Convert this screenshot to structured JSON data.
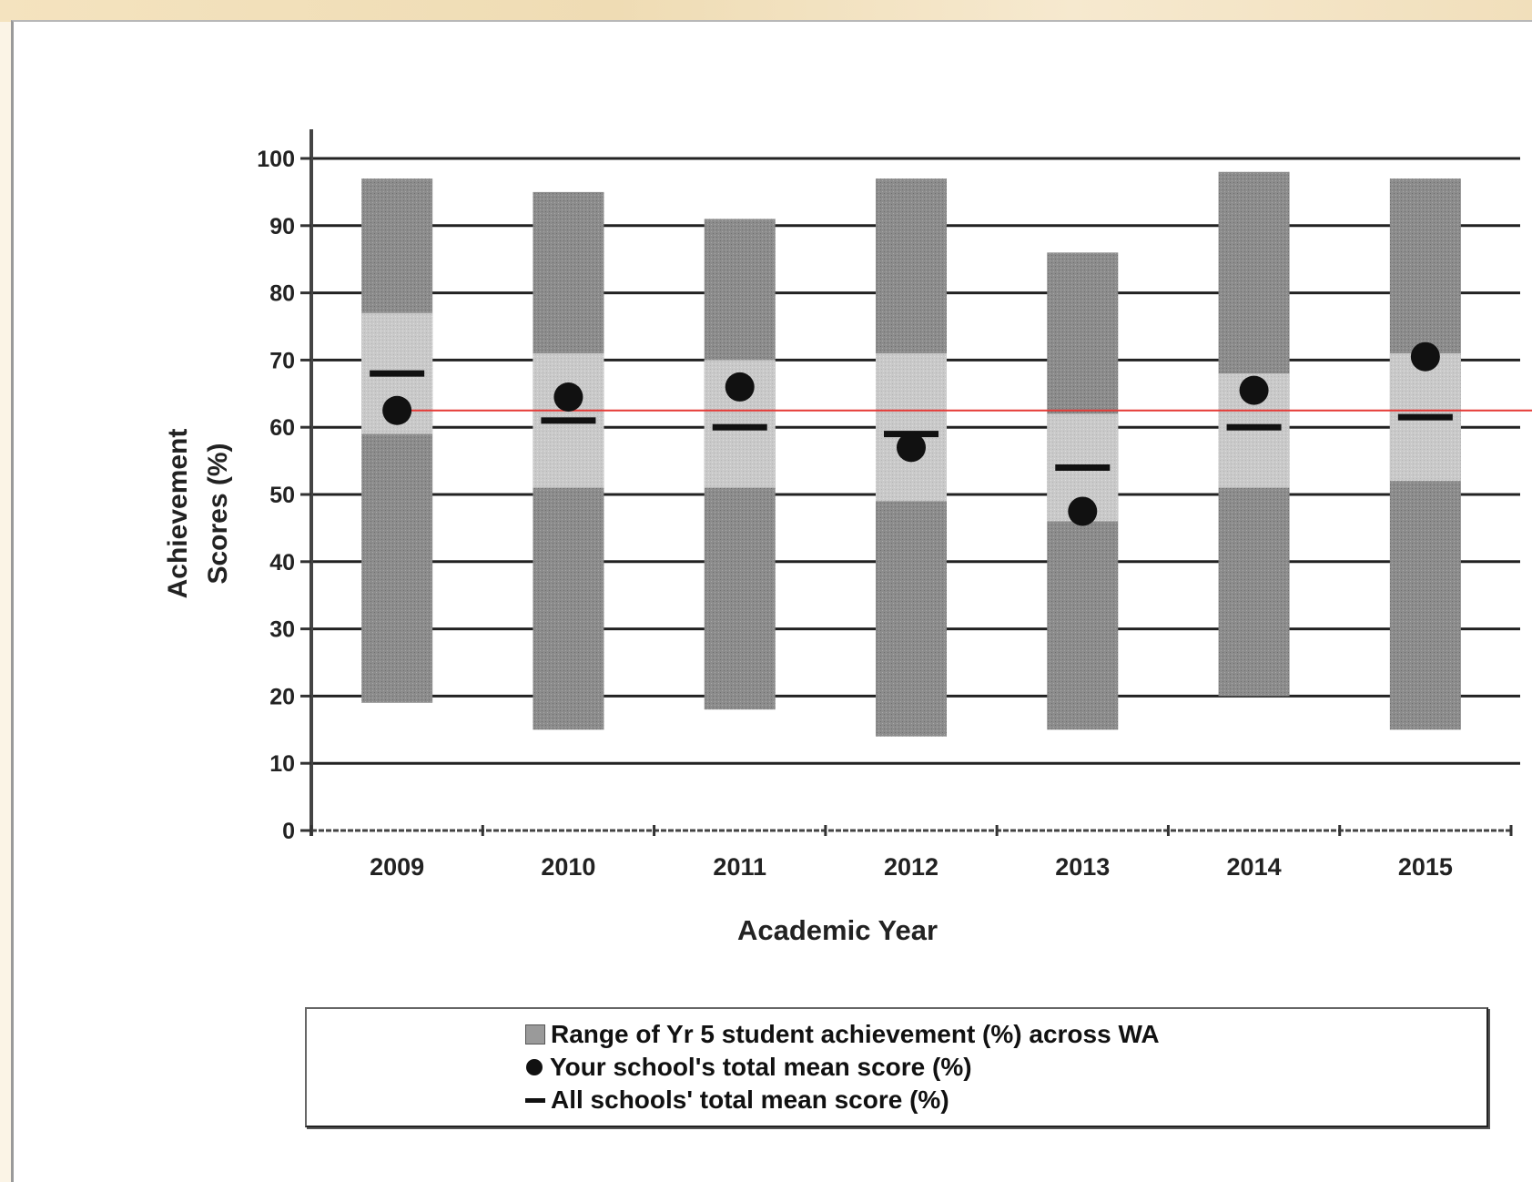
{
  "chart_data": {
    "type": "bar",
    "xlabel": "Academic Year",
    "ylabel": "Achievement Scores (%)",
    "ylabel_lines": [
      "Achievement",
      "Scores (%)"
    ],
    "ylim": [
      0,
      100
    ],
    "yticks": [
      0,
      10,
      20,
      30,
      40,
      50,
      60,
      70,
      80,
      90,
      100
    ],
    "categories": [
      "2009",
      "2010",
      "2011",
      "2012",
      "2013",
      "2014",
      "2015"
    ],
    "grid": true,
    "legend_position": "bottom",
    "series": [
      {
        "name": "Range of Yr 5 student achievement (%) across WA",
        "kind": "floating-range",
        "ranges": [
          {
            "low": 19,
            "high": 97,
            "middle_low": 59,
            "middle_high": 77
          },
          {
            "low": 15,
            "high": 95,
            "middle_low": 51,
            "middle_high": 71
          },
          {
            "low": 18,
            "high": 91,
            "middle_low": 51,
            "middle_high": 70
          },
          {
            "low": 14,
            "high": 97,
            "middle_low": 49,
            "middle_high": 71
          },
          {
            "low": 15,
            "high": 86,
            "middle_low": 46,
            "middle_high": 62
          },
          {
            "low": 20,
            "high": 98,
            "middle_low": 51,
            "middle_high": 68
          },
          {
            "low": 15,
            "high": 97,
            "middle_low": 52,
            "middle_high": 71
          }
        ]
      },
      {
        "name": "Your school's total mean score (%)",
        "kind": "dot",
        "values": [
          62.5,
          64.5,
          66,
          57,
          47.5,
          65.5,
          70.5
        ]
      },
      {
        "name": "All schools' total mean score (%)",
        "kind": "dash",
        "values": [
          68,
          61,
          60,
          59,
          54,
          60,
          61.5
        ]
      }
    ],
    "reference_line": {
      "value": 62.5,
      "color": "#e53935"
    },
    "colors": {
      "range_outer": "#8e8e8e",
      "range_middle": "#c9c9c9",
      "marker": "#111111",
      "gridline": "#222222"
    }
  },
  "legend": {
    "items": [
      {
        "icon": "range-swatch-icon",
        "label": "Range of Yr 5 student achievement (%) across WA"
      },
      {
        "icon": "dot-icon",
        "label": "Your school's total mean score (%)"
      },
      {
        "icon": "dash-icon",
        "label": "All schools' total mean score (%)"
      }
    ]
  }
}
